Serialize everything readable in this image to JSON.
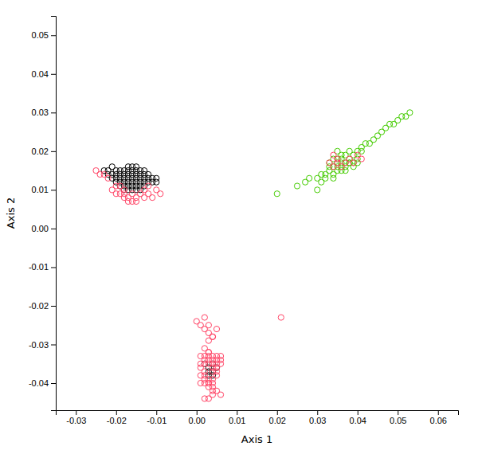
{
  "chart_data": {
    "type": "scatter",
    "xlabel": "Axis 1",
    "ylabel": "Axis 2",
    "xlim": [
      -0.035,
      0.065
    ],
    "ylim": [
      -0.047,
      0.055
    ],
    "xticks": [
      -0.03,
      -0.02,
      -0.01,
      {
        "value": 0,
        "label": "0.00"
      },
      0.01,
      0.02,
      0.03,
      0.04,
      0.05,
      0.06
    ],
    "yticks": [
      -0.04,
      -0.03,
      -0.02,
      -0.01,
      {
        "value": 0,
        "label": "0.00"
      },
      0.01,
      0.02,
      0.03,
      0.04,
      0.05
    ],
    "grid": false,
    "marker": "open-circle",
    "series": [
      {
        "color": "#000000",
        "x": [
          -0.023,
          -0.022,
          -0.022,
          -0.021,
          -0.021,
          -0.021,
          -0.02,
          -0.02,
          -0.02,
          -0.02,
          -0.019,
          -0.019,
          -0.019,
          -0.019,
          -0.019,
          -0.018,
          -0.018,
          -0.018,
          -0.018,
          -0.018,
          -0.018,
          -0.017,
          -0.017,
          -0.017,
          -0.017,
          -0.017,
          -0.017,
          -0.017,
          -0.016,
          -0.016,
          -0.016,
          -0.016,
          -0.016,
          -0.016,
          -0.016,
          -0.015,
          -0.015,
          -0.015,
          -0.015,
          -0.015,
          -0.015,
          -0.015,
          -0.014,
          -0.014,
          -0.014,
          -0.014,
          -0.014,
          -0.014,
          -0.013,
          -0.013,
          -0.013,
          -0.013,
          -0.013,
          -0.012,
          -0.012,
          -0.012,
          -0.011,
          -0.011,
          -0.01,
          -0.01
        ],
        "values": [
          0.015,
          0.014,
          0.015,
          0.013,
          0.014,
          0.016,
          0.012,
          0.013,
          0.014,
          0.015,
          0.011,
          0.012,
          0.013,
          0.014,
          0.015,
          0.01,
          0.011,
          0.012,
          0.013,
          0.014,
          0.015,
          0.01,
          0.011,
          0.012,
          0.013,
          0.014,
          0.015,
          0.016,
          0.01,
          0.011,
          0.012,
          0.013,
          0.014,
          0.015,
          0.016,
          0.01,
          0.011,
          0.012,
          0.013,
          0.014,
          0.015,
          0.016,
          0.01,
          0.011,
          0.012,
          0.013,
          0.014,
          0.015,
          0.011,
          0.012,
          0.013,
          0.014,
          0.015,
          0.012,
          0.013,
          0.014,
          0.012,
          0.013,
          0.012,
          0.013
        ]
      },
      {
        "color": "#FF4466",
        "x": [
          -0.025,
          -0.024,
          -0.023,
          -0.022,
          -0.021,
          -0.02,
          -0.02,
          -0.019,
          -0.019,
          -0.018,
          -0.018,
          -0.018,
          -0.017,
          -0.017,
          -0.016,
          -0.016,
          -0.015,
          -0.015,
          -0.014,
          -0.013,
          -0.012,
          -0.011,
          -0.01,
          -0.009,
          -0.013,
          -0.012
        ],
        "values": [
          0.015,
          0.014,
          0.014,
          0.013,
          0.01,
          0.009,
          0.011,
          0.009,
          0.011,
          0.008,
          0.009,
          0.01,
          0.007,
          0.008,
          0.007,
          0.009,
          0.007,
          0.008,
          0.009,
          0.008,
          0.009,
          0.008,
          0.01,
          0.009,
          0.01,
          0.011
        ]
      },
      {
        "color": "#000000",
        "x": [
          0.002,
          0.003,
          0.003,
          0.004,
          0.004,
          0.005,
          0.004,
          0.003
        ],
        "values": [
          -0.035,
          -0.036,
          -0.037,
          -0.035,
          -0.037,
          -0.036,
          -0.038,
          -0.038
        ]
      },
      {
        "color": "#FF4466",
        "x": [
          0.001,
          0.001,
          0.002,
          0.002,
          0.002,
          0.003,
          0.003,
          0.003,
          0.003,
          0.004,
          0.004,
          0.004,
          0.004,
          0.004,
          0.005,
          0.005,
          0.005,
          0.005,
          0.006,
          0.006,
          0.006,
          0.001,
          0.002,
          0.003,
          0.003,
          0.004,
          0.004,
          0.004,
          0.005,
          0.006,
          0.001,
          0.002,
          0.002,
          0.003,
          0.003,
          0.004,
          0.005,
          0.003,
          0.004,
          0.0,
          0.001,
          0.002,
          0.003,
          0.004,
          0.005,
          0.002,
          0.003,
          0.004,
          0.001,
          0.002,
          0.005,
          0.002,
          0.003
        ],
        "values": [
          -0.033,
          -0.035,
          -0.033,
          -0.034,
          -0.035,
          -0.032,
          -0.033,
          -0.034,
          -0.035,
          -0.033,
          -0.034,
          -0.035,
          -0.036,
          -0.037,
          -0.033,
          -0.034,
          -0.035,
          -0.036,
          -0.033,
          -0.034,
          -0.035,
          -0.04,
          -0.04,
          -0.04,
          -0.041,
          -0.04,
          -0.041,
          -0.042,
          -0.042,
          -0.043,
          -0.038,
          -0.038,
          -0.039,
          -0.039,
          -0.04,
          -0.039,
          -0.038,
          -0.029,
          -0.028,
          -0.024,
          -0.025,
          -0.026,
          -0.027,
          -0.028,
          -0.026,
          -0.044,
          -0.044,
          -0.043,
          -0.036,
          -0.037,
          -0.037,
          -0.031,
          -0.032
        ]
      },
      {
        "color": "#FF4466",
        "x": [
          0.002,
          0.003,
          0.021
        ],
        "values": [
          -0.023,
          -0.025,
          -0.023
        ]
      },
      {
        "color": "#44CC00",
        "x": [
          0.033,
          0.033,
          0.034,
          0.034,
          0.034,
          0.035,
          0.035,
          0.035,
          0.035,
          0.036,
          0.036,
          0.036,
          0.036,
          0.037,
          0.037,
          0.037,
          0.038,
          0.038,
          0.038,
          0.039,
          0.039,
          0.04,
          0.04,
          0.041,
          0.041,
          0.042,
          0.043,
          0.044,
          0.045,
          0.046,
          0.047,
          0.048,
          0.049,
          0.05,
          0.051,
          0.052,
          0.053,
          0.028,
          0.03,
          0.031,
          0.032,
          0.033,
          0.025,
          0.027,
          0.032,
          0.034,
          0.031,
          0.035,
          0.036,
          0.037,
          0.038,
          0.039,
          0.04
        ],
        "values": [
          0.015,
          0.017,
          0.014,
          0.016,
          0.018,
          0.015,
          0.017,
          0.018,
          0.02,
          0.015,
          0.017,
          0.018,
          0.019,
          0.015,
          0.017,
          0.019,
          0.017,
          0.018,
          0.02,
          0.017,
          0.019,
          0.018,
          0.02,
          0.02,
          0.021,
          0.022,
          0.022,
          0.023,
          0.024,
          0.025,
          0.026,
          0.027,
          0.027,
          0.028,
          0.029,
          0.029,
          0.03,
          0.013,
          0.013,
          0.014,
          0.013,
          0.016,
          0.011,
          0.012,
          0.014,
          0.013,
          0.012,
          0.016,
          0.016,
          0.016,
          0.017,
          0.016,
          0.017
        ]
      },
      {
        "color": "#44CC00",
        "x": [
          0.02,
          0.03
        ],
        "values": [
          0.009,
          0.01
        ]
      },
      {
        "color": "#FF4466",
        "x": [
          0.033,
          0.034,
          0.035,
          0.036,
          0.037,
          0.038,
          0.039,
          0.04,
          0.041,
          0.034,
          0.035
        ],
        "values": [
          0.017,
          0.016,
          0.017,
          0.016,
          0.017,
          0.018,
          0.017,
          0.019,
          0.018,
          0.019,
          0.018
        ]
      }
    ]
  }
}
